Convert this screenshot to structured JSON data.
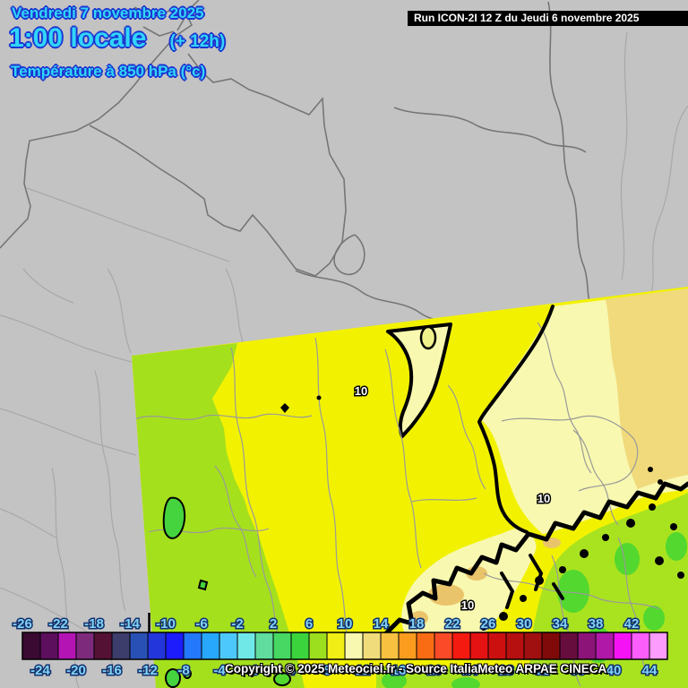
{
  "header": {
    "date_line": "Vendredi 7 novembre 2025",
    "time_line": "1:00 locale",
    "offset_label": "(+ 12h)",
    "param_line": "Température à 850 hPa (°c)"
  },
  "run_info": {
    "text": "Run ICON-2I 12 Z du Jeudi 6 novembre 2025"
  },
  "copyright": "Copyright © 2025 Meteociel.fr - Source ItaliaMeteo ARPAE CINECA",
  "map": {
    "contour_label": "10",
    "colors": {
      "background_gray": "#c3c3c3",
      "border_dark": "#767676",
      "border_light": "#a8a8a8",
      "domain_border_gray": "#9a9a9a",
      "yellow_8_10": "#f2f200",
      "pale_yellow_10_12": "#f8f8b0",
      "tan_12_14": "#f0da7c",
      "tan_dark": "#eac46a",
      "yellow_green_6_8": "#a5e01c",
      "green_4_6": "#46d43e",
      "green_patch": "#52d82e",
      "contour_black": "#000000"
    }
  },
  "scale": {
    "unit": "°c",
    "labels": [
      -26,
      -24,
      -22,
      -20,
      -18,
      -16,
      -14,
      -12,
      -10,
      -8,
      -6,
      -4,
      -2,
      0,
      2,
      4,
      6,
      8,
      10,
      12,
      14,
      16,
      18,
      20,
      22,
      24,
      26,
      28,
      30,
      32,
      34,
      36,
      38,
      40,
      42,
      44
    ],
    "cell_colors": [
      "#3a0a33",
      "#5c0f5c",
      "#b414b4",
      "#7d2a7d",
      "#551133",
      "#3d3d6b",
      "#2951b5",
      "#2236dc",
      "#1c1cfc",
      "#2478fc",
      "#28a8fc",
      "#4cc8fc",
      "#70e8e8",
      "#60dc9e",
      "#46d862",
      "#3cd43c",
      "#9cdf1e",
      "#f0ee14",
      "#f8f8b0",
      "#f0dc7a",
      "#f8c240",
      "#fc9c1e",
      "#fa6c14",
      "#fb4a28",
      "#f41a10",
      "#e41212",
      "#cc1010",
      "#b61010",
      "#a01010",
      "#800a0a",
      "#670d3e",
      "#8c1478",
      "#b018a8",
      "#f512f5",
      "#fc5efc",
      "#fc9cfc"
    ]
  }
}
